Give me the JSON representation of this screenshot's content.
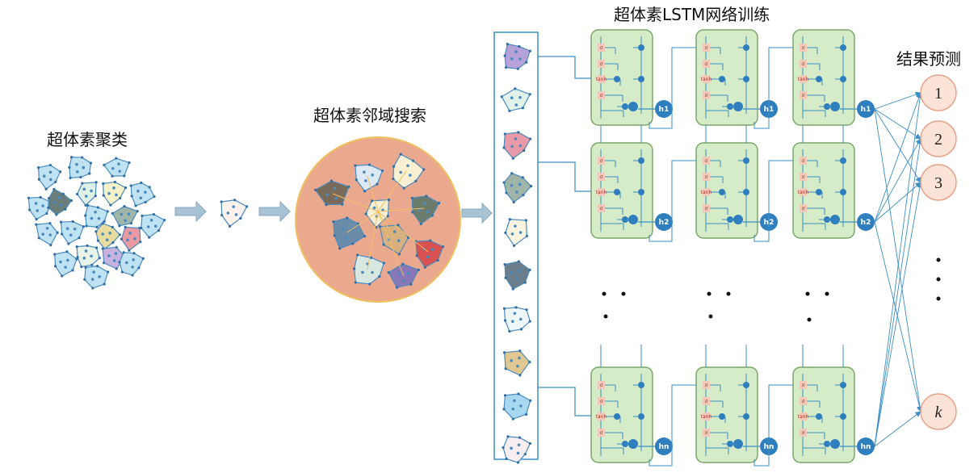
{
  "labels": {
    "cluster": "超体素聚类",
    "neighborhood": "超体素邻域搜索",
    "lstm": "超体素LSTM网络训练",
    "result": "结果预测"
  },
  "lstm_rows": [
    {
      "hidden": "h1"
    },
    {
      "hidden": "h2"
    },
    {
      "hidden": "hn"
    }
  ],
  "lstm_gates": [
    "σ",
    "σ",
    "tanh",
    "σ"
  ],
  "outputs": [
    "1",
    "2",
    "3",
    "k"
  ],
  "colors": {
    "cell_fill": "#d6ebc8",
    "cell_stroke": "#7aa86a",
    "line": "#3a8fc4",
    "node_fill": "#fbe3d8",
    "node_stroke": "#e7a48a",
    "hidden_fill": "#2f7fbf",
    "arrow": "#a9c3d6",
    "circle_fill": "#eaa98e",
    "circle_stroke": "#f0c060"
  }
}
